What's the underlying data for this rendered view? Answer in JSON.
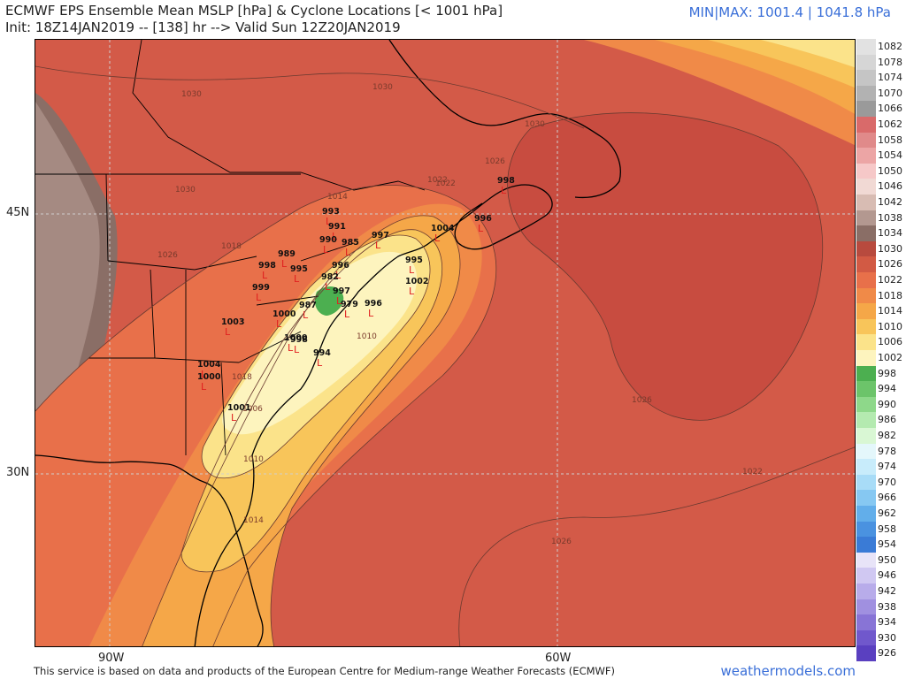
{
  "header": {
    "title_line1": "ECMWF EPS Ensemble Mean MSLP [hPa] & Cyclone Locations [< 1001 hPa]",
    "title_line2": "Init: 18Z14JAN2019 -- [138] hr --> Valid Sun 12Z20JAN2019",
    "minmax_prefix": "MIN|MAX: 1001.4",
    "minmax_sep": "|",
    "minmax_suffix": "1041.8 hPa"
  },
  "axes": {
    "lat_labels": [
      "45N",
      "30N"
    ],
    "lon_labels": [
      "90W",
      "60W"
    ]
  },
  "footer": {
    "attribution": "This service is based on data and products of the European Centre for Medium-range Weather Forecasts (ECMWF)",
    "brand": "weathermodels.com"
  },
  "colorbar": {
    "labels": [
      "1082",
      "1078",
      "1074",
      "1070",
      "1066",
      "1062",
      "1058",
      "1054",
      "1050",
      "1046",
      "1042",
      "1038",
      "1034",
      "1030",
      "1026",
      "1022",
      "1018",
      "1014",
      "1010",
      "1006",
      "1002",
      "998",
      "994",
      "990",
      "986",
      "982",
      "978",
      "974",
      "970",
      "966",
      "962",
      "958",
      "954",
      "950",
      "946",
      "942",
      "938",
      "934",
      "930",
      "926"
    ],
    "colors": [
      "#e2e2e2",
      "#d6d6d6",
      "#c5c5c5",
      "#b2b2b2",
      "#9a9a9a",
      "#d96a6a",
      "#e08a8a",
      "#eca5a5",
      "#f6c8c8",
      "#f1d9d4",
      "#d8bcb3",
      "#b39890",
      "#8a6e66",
      "#b84a3e",
      "#d25a44",
      "#e8704a",
      "#f08a48",
      "#f5a748",
      "#f8c55a",
      "#fbe38a",
      "#fdf4be",
      "#4caf50",
      "#6cc46a",
      "#8ed88a",
      "#b4eab0",
      "#d9f7d4",
      "#e4f7fb",
      "#c8ecfb",
      "#a8dcf7",
      "#86c8f2",
      "#62aeea",
      "#4a92e0",
      "#3a7bd6",
      "#e8e4f8",
      "#d0c8f2",
      "#b8acea",
      "#a090e0",
      "#8874d6",
      "#7058cc",
      "#5a40c0"
    ]
  },
  "contour_labels": [
    "1030",
    "1030",
    "1030",
    "1026",
    "1030",
    "1026",
    "1022",
    "1018",
    "1014",
    "1018",
    "1026",
    "1010",
    "1006",
    "1010",
    "1014",
    "1022",
    "1026",
    "1022"
  ],
  "cyclone_labels": [
    "998",
    "1004",
    "996",
    "993",
    "991",
    "990",
    "989",
    "995",
    "996",
    "997",
    "998",
    "1001",
    "999",
    "1000",
    "1003",
    "1004",
    "997",
    "1000",
    "998",
    "1000",
    "979",
    "996",
    "995",
    "1002",
    "994",
    "982",
    "985",
    "987"
  ]
}
